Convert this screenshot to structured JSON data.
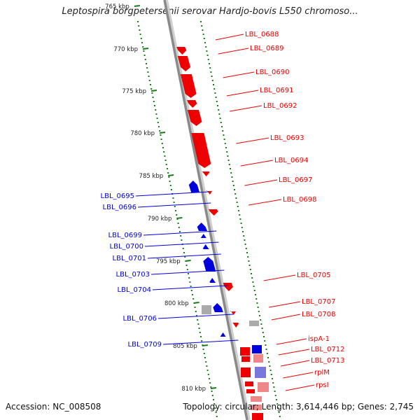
{
  "title": "Leptospira borgpetersenii serovar Hardjo-bovis L550 chromoso...",
  "accession": "Accession: NC_008508",
  "topology": "Topology: circular; Length: 3,614,446 bp; Genes: 2,745",
  "colors": {
    "forward": "#ee0000",
    "reverse": "#0000dd",
    "gray": "#aaaaaa",
    "tick": "#1a7a1a",
    "axis": "#888888"
  },
  "kbp_ticks": [
    "765 kbp",
    "770 kbp",
    "775 kbp",
    "780 kbp",
    "785 kbp",
    "790 kbp",
    "795 kbp",
    "800 kbp",
    "805 kbp",
    "810 kbp"
  ],
  "genes_forward": [
    "LBL_0688",
    "LBL_0689",
    "LBL_0690",
    "LBL_0691",
    "LBL_0692",
    "LBL_0693",
    "LBL_0694",
    "LBL_0697",
    "LBL_0698",
    "LBL_0705",
    "LBL_0707",
    "LBL_0708",
    "ispA-1",
    "LBL_0712",
    "LBL_0713",
    "rplM",
    "rpsI"
  ],
  "genes_reverse": [
    "LBL_0695",
    "LBL_0696",
    "LBL_0699",
    "LBL_0700",
    "LBL_0701",
    "LBL_0703",
    "LBL_0704",
    "LBL_0706",
    "LBL_0709"
  ]
}
